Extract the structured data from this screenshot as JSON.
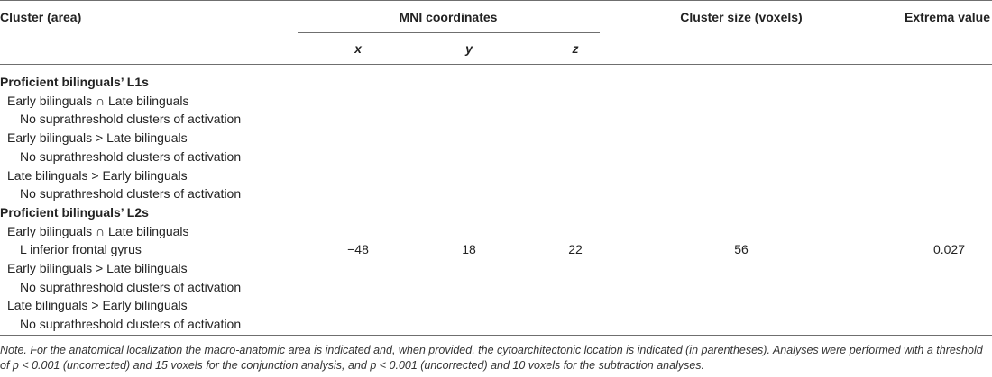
{
  "table": {
    "headers": {
      "cluster": "Cluster (area)",
      "mni": "MNI coordinates",
      "x": "x",
      "y": "y",
      "z": "z",
      "size": "Cluster size (voxels)",
      "extrema": "Extrema value"
    },
    "rows": [
      {
        "label": "Proficient bilinguals’ L1s",
        "level": 0,
        "bold": true
      },
      {
        "label": "Early bilinguals ∩ Late bilinguals",
        "level": 1
      },
      {
        "label": "No suprathreshold clusters of activation",
        "level": 2
      },
      {
        "label": "Early bilinguals > Late bilinguals",
        "level": 1
      },
      {
        "label": "No suprathreshold clusters of activation",
        "level": 2
      },
      {
        "label": "Late bilinguals > Early bilinguals",
        "level": 1
      },
      {
        "label": "No suprathreshold clusters of activation",
        "level": 2
      },
      {
        "label": "Proficient bilinguals’ L2s",
        "level": 0,
        "bold": true
      },
      {
        "label": "Early bilinguals ∩ Late bilinguals",
        "level": 1
      },
      {
        "label": "L inferior frontal gyrus",
        "level": 2,
        "x": "−48",
        "y": "18",
        "z": "22",
        "size": "56",
        "extrema": "0.027"
      },
      {
        "label": "Early bilinguals > Late bilinguals",
        "level": 1
      },
      {
        "label": "No suprathreshold clusters of activation",
        "level": 2
      },
      {
        "label": "Late bilinguals > Early bilinguals",
        "level": 1
      },
      {
        "label": "No suprathreshold clusters of activation",
        "level": 2
      }
    ]
  },
  "note": "Note. For the anatomical localization the macro-anatomic area is indicated and, when provided, the cytoarchitectonic location is indicated (in parentheses). Analyses were performed with a threshold of p < 0.001 (uncorrected) and 15 voxels for the conjunction analysis, and p < 0.001 (uncorrected) and 10 voxels for the subtraction analyses."
}
